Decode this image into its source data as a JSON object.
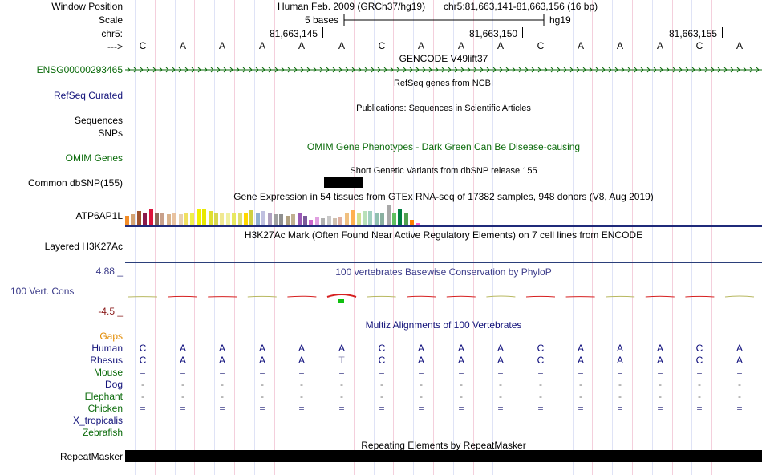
{
  "header": {
    "window_position_label": "Window Position",
    "scale_label": "Scale",
    "chrom_label": "chr5:",
    "arrow_label": "--->",
    "assembly_title": "Human Feb. 2009 (GRCh37/hg19)",
    "coordinates": "chr5:81,663,141-81,663,156 (16 bp)",
    "scale_text": "5 bases",
    "scale_assembly": "hg19",
    "ticks": [
      "81,663,145",
      "81,663,150",
      "81,663,155"
    ]
  },
  "sequence": [
    "C",
    "A",
    "A",
    "A",
    "A",
    "A",
    "C",
    "A",
    "A",
    "A",
    "C",
    "A",
    "A",
    "A",
    "C",
    "A"
  ],
  "tracks": {
    "gencode": {
      "title": "GENCODE V49lift37",
      "label": "ENSG00000293465",
      "color": "#0b6b0b"
    },
    "refseq": {
      "title": "RefSeq genes from NCBI",
      "label": "RefSeq Curated",
      "color": "#12127a"
    },
    "publications": {
      "title": "Publications: Sequences in Scientific Articles",
      "label": "Sequences"
    },
    "snps": {
      "label": "SNPs"
    },
    "omim": {
      "title": "OMIM Gene Phenotypes - Dark Green Can Be Disease-causing",
      "label": "OMIM Genes",
      "color": "#0b6b0b"
    },
    "dbsnp": {
      "title": "Short Genetic Variants from dbSNP release 155",
      "label": "Common dbSNP(155)"
    },
    "gtex": {
      "title": "Gene Expression in 54 tissues from GTEx RNA-seq of 17382 samples, 948 donors (V8, Aug 2019)",
      "label": "ATP6AP1L",
      "values": [
        0.4,
        0.45,
        0.6,
        0.55,
        0.7,
        0.5,
        0.5,
        0.45,
        0.5,
        0.45,
        0.5,
        0.55,
        0.7,
        0.7,
        0.6,
        0.55,
        0.55,
        0.55,
        0.5,
        0.5,
        0.55,
        0.65,
        0.55,
        0.6,
        0.5,
        0.45,
        0.45,
        0.4,
        0.45,
        0.5,
        0.4,
        0.2,
        0.35,
        0.3,
        0.4,
        0.3,
        0.35,
        0.55,
        0.65,
        0.5,
        0.6,
        0.6,
        0.5,
        0.5,
        0.9,
        0.5,
        0.7,
        0.5,
        0.2,
        0.05
      ],
      "colors": [
        "#f28c28",
        "#d4a373",
        "#a0522d",
        "#8b1a4a",
        "#dc143c",
        "#8a6a5a",
        "#c8a08a",
        "#d9b38c",
        "#e8c2a0",
        "#e8d0b0",
        "#f0e060",
        "#f0f04a",
        "#f0f000",
        "#e8e800",
        "#e0e030",
        "#d8d850",
        "#f0e890",
        "#f0f0a0",
        "#e8e860",
        "#e0e070",
        "#ffd700",
        "#d0d040",
        "#90b0d0",
        "#c0c0e0",
        "#b0a0c0",
        "#a0a0a0",
        "#909090",
        "#b0a080",
        "#c0b090",
        "#9b59b6",
        "#7a5a9a",
        "#cc66cc",
        "#e0a0e0",
        "#b0b0b0",
        "#c8c8c8",
        "#d0c0b0",
        "#e0b0a0",
        "#f0c080",
        "#ffb050",
        "#d0e090",
        "#b8e0b8",
        "#a0d0c0",
        "#90c0b0",
        "#8ab0a0",
        "#a8a8a8",
        "#60c060",
        "#008040",
        "#50a050",
        "#ff8000",
        "#ff66cc"
      ]
    },
    "h3k27ac": {
      "title": "H3K27Ac Mark (Often Found Near Active Regulatory Elements) on 7 cell lines from ENCODE",
      "label": "Layered H3K27Ac"
    },
    "conservation": {
      "title": "100 vertebrates Basewise Conservation by PhyloP",
      "label": "100 Vert. Cons",
      "ymax": "4.88 _",
      "ymin": "-4.5 _",
      "color": "#3c3c8a",
      "values": [
        0.2,
        0.3,
        0.2,
        0.3,
        0.4,
        1.5,
        0.3,
        0.4,
        0.4,
        0.5,
        0.3,
        0.2,
        0.3,
        0.4,
        0.3,
        0.5
      ]
    },
    "gaps": {
      "label": "Gaps",
      "color": "#e28a00"
    },
    "multiz": {
      "title": "Multiz Alignments of 100 Vertebrates",
      "species": [
        {
          "name": "Human",
          "color": "#12127a",
          "row": [
            "C",
            "A",
            "A",
            "A",
            "A",
            "A",
            "C",
            "A",
            "A",
            "A",
            "C",
            "A",
            "A",
            "A",
            "C",
            "A"
          ]
        },
        {
          "name": "Rhesus",
          "color": "#12127a",
          "row": [
            "C",
            "A",
            "A",
            "A",
            "A",
            "T",
            "C",
            "A",
            "A",
            "A",
            "C",
            "A",
            "A",
            "A",
            "C",
            "A"
          ]
        },
        {
          "name": "Mouse",
          "color": "#0b6b0b",
          "row": [
            "=",
            "=",
            "=",
            "=",
            "=",
            "=",
            "=",
            "=",
            "=",
            "=",
            "=",
            "=",
            "=",
            "=",
            "=",
            "="
          ]
        },
        {
          "name": "Dog",
          "color": "#12127a",
          "row": [
            "-",
            "-",
            "-",
            "-",
            "-",
            "-",
            "-",
            "-",
            "-",
            "-",
            "-",
            "-",
            "-",
            "-",
            "-",
            "-"
          ]
        },
        {
          "name": "Elephant",
          "color": "#0b6b0b",
          "row": [
            "-",
            "-",
            "-",
            "-",
            "-",
            "-",
            "-",
            "-",
            "-",
            "-",
            "-",
            "-",
            "-",
            "-",
            "-",
            "-"
          ]
        },
        {
          "name": "Chicken",
          "color": "#0b6b0b",
          "row": [
            "=",
            "=",
            "=",
            "=",
            "=",
            "=",
            "=",
            "=",
            "=",
            "=",
            "=",
            "=",
            "=",
            "=",
            "=",
            "="
          ]
        },
        {
          "name": "X_tropicalis",
          "color": "#12127a",
          "row": []
        },
        {
          "name": "Zebrafish",
          "color": "#0b6b0b",
          "row": []
        }
      ]
    },
    "repeatmasker": {
      "title": "Repeating Elements by RepeatMasker",
      "label": "RepeatMasker"
    }
  }
}
